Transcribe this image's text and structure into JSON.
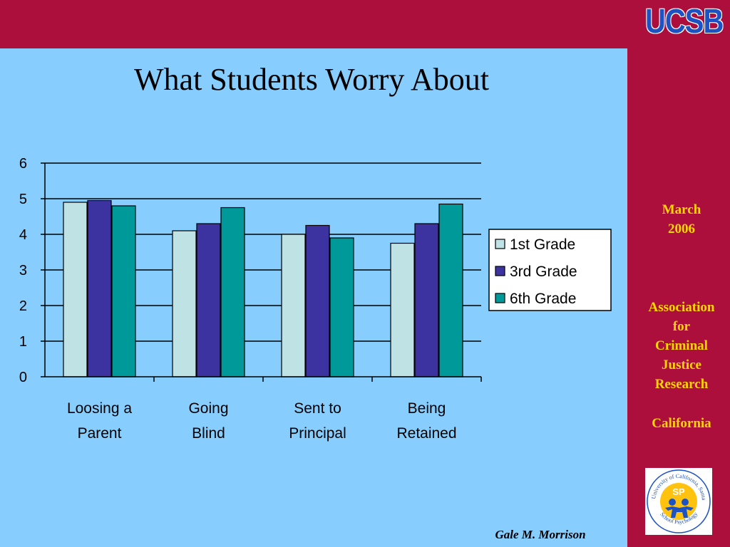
{
  "slide": {
    "title": "What Students Worry About",
    "logo": "UCSB",
    "date_line1": "March",
    "date_line2": "2006",
    "org_line1": "Association",
    "org_line2": "for",
    "org_line3": "Criminal",
    "org_line4": "Justice",
    "org_line5": "Research",
    "location": "California",
    "author": "Gale M. Morrison",
    "seal_text": "University of California, Santa Barbara · School Psychology",
    "seal_letters": "SP"
  },
  "colors": {
    "background": "#87CEFF",
    "brand": "#AC0F3B",
    "accent_text": "#FFD700",
    "logo": "#1C52C2",
    "series_1st": "#BFE3E5",
    "series_3rd": "#3C33A0",
    "series_6th": "#009999"
  },
  "chart_data": {
    "type": "bar",
    "title": "",
    "xlabel": "",
    "ylabel": "",
    "categories": [
      [
        "Loosing a",
        "Parent"
      ],
      [
        "Going",
        "Blind"
      ],
      [
        "Sent to",
        "Principal"
      ],
      [
        "Being",
        "Retained"
      ]
    ],
    "series": [
      {
        "name": "1st Grade",
        "color": "#BFE3E5",
        "values": [
          4.9,
          4.1,
          4.0,
          3.75
        ]
      },
      {
        "name": "3rd Grade",
        "color": "#3C33A0",
        "values": [
          4.95,
          4.3,
          4.25,
          4.3
        ]
      },
      {
        "name": "6th Grade",
        "color": "#009999",
        "values": [
          4.8,
          4.75,
          3.9,
          4.85
        ]
      }
    ],
    "ylim": [
      0,
      6
    ],
    "yticks": [
      "0",
      "1",
      "2",
      "3",
      "4",
      "5",
      "6"
    ],
    "grid": true,
    "legend": "right"
  }
}
